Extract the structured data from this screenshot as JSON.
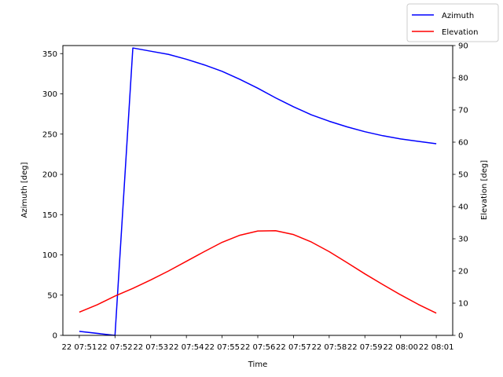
{
  "chart_data": {
    "type": "line",
    "title": "",
    "xlabel": "Time",
    "ylabel_left": "Azimuth [deg]",
    "ylabel_right": "Elevation [deg]",
    "xlim": [
      7.7,
      62.3
    ],
    "ylim_left": [
      0,
      360
    ],
    "ylim_right": [
      0,
      90
    ],
    "x_ticks": [
      {
        "value": 10,
        "label": "22 07:51"
      },
      {
        "value": 15,
        "label": "22 07:52"
      },
      {
        "value": 20,
        "label": "22 07:53"
      },
      {
        "value": 25,
        "label": "22 07:54"
      },
      {
        "value": 30,
        "label": "22 07:55"
      },
      {
        "value": 35,
        "label": "22 07:56"
      },
      {
        "value": 40,
        "label": "22 07:57"
      },
      {
        "value": 45,
        "label": "22 07:58"
      },
      {
        "value": 50,
        "label": "22 07:59"
      },
      {
        "value": 55,
        "label": "22 08:00"
      },
      {
        "value": 60,
        "label": "22 08:01"
      }
    ],
    "y_ticks_left": [
      0,
      50,
      100,
      150,
      200,
      250,
      300,
      350
    ],
    "y_ticks_right": [
      0,
      10,
      20,
      30,
      40,
      50,
      60,
      70,
      80,
      90
    ],
    "series": [
      {
        "name": "Azimuth",
        "axis": "left",
        "color": "#0000ff",
        "x": [
          10,
          15,
          17.5,
          20,
          22.5,
          25,
          27.5,
          30,
          32.5,
          35,
          37.5,
          40,
          42.5,
          45,
          47.5,
          50,
          52.5,
          55,
          57.5,
          60
        ],
        "y": [
          5,
          0,
          357,
          353,
          349,
          343,
          336,
          328,
          318,
          307,
          295,
          284,
          274,
          266,
          259,
          253,
          248,
          244,
          241,
          238
        ]
      },
      {
        "name": "Elevation",
        "axis": "right",
        "color": "#ff0000",
        "x": [
          10,
          12.5,
          15,
          17.5,
          20,
          22.5,
          25,
          27.5,
          30,
          32.5,
          35,
          37.5,
          40,
          42.5,
          45,
          47.5,
          50,
          52.5,
          55,
          57.5,
          60
        ],
        "y": [
          7.2,
          9.5,
          12.2,
          14.6,
          17.2,
          20.0,
          23.0,
          26.0,
          28.9,
          31.1,
          32.4,
          32.5,
          31.3,
          29.0,
          26.0,
          22.6,
          19.1,
          15.8,
          12.6,
          9.6,
          6.9
        ]
      }
    ],
    "legend": {
      "placement": "top-right, outside plot",
      "entries": [
        "Azimuth",
        "Elevation"
      ]
    }
  }
}
